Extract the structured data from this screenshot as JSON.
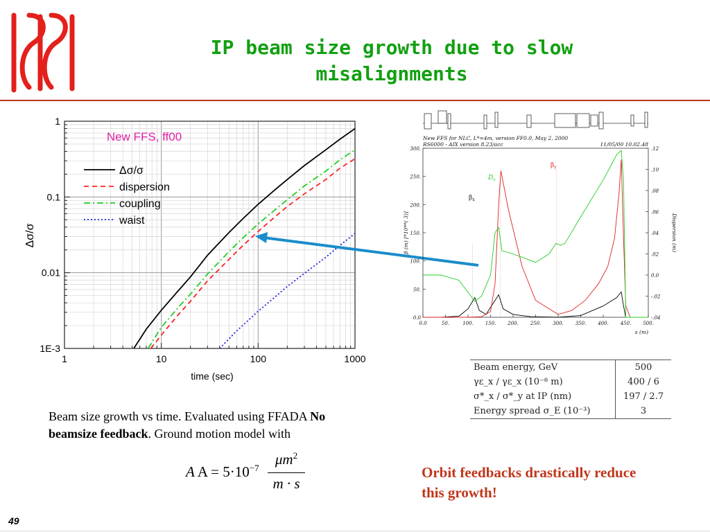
{
  "slide": {
    "title": "IP beam size growth due to slow misalignments",
    "caption_part1": "Beam size growth vs time. Evaluated using FFADA ",
    "caption_bold": "No beamsize feedback",
    "caption_part2": ".  Ground motion model with",
    "formula_lhs": "A = 5·10",
    "formula_exp": "−7",
    "formula_num": "μm",
    "formula_num_exp": "2",
    "formula_den": "m · s",
    "note": "Orbit feedbacks drastically reduce this growth!",
    "page_number": "49",
    "colors": {
      "title": "#12a012",
      "rule": "#b8361a",
      "note": "#c0361b",
      "logo": "#e3201b",
      "arrow": "#1a8ccb"
    }
  },
  "parameters_table": {
    "rows": [
      {
        "label": "Beam energy, GeV",
        "value": "500"
      },
      {
        "label": "γε_x / γε_x (10⁻⁸ m)",
        "value": "400 / 6"
      },
      {
        "label": "σ*_x / σ*_y at IP (nm)",
        "value": "197 / 2.7"
      },
      {
        "label": "Energy spread σ_E (10⁻³)",
        "value": "3"
      }
    ]
  },
  "chart_data": [
    {
      "type": "line",
      "title": "New FFS, ff00",
      "xlabel": "time (sec)",
      "ylabel": "Δσ/σ",
      "xscale": "log",
      "yscale": "log",
      "xlim": [
        1,
        1000
      ],
      "ylim": [
        0.001,
        1
      ],
      "xticks": [
        "1",
        "10",
        "100",
        "1000"
      ],
      "yticks": [
        "1E-3",
        "0.01",
        "0.1",
        "1"
      ],
      "grid": true,
      "legend_position": "upper-left",
      "series": [
        {
          "name": "Δσ/σ",
          "color": "#000000",
          "dash": "solid",
          "x": [
            5.2,
            7,
            10,
            15,
            20,
            30,
            50,
            70,
            100,
            150,
            200,
            300,
            500,
            700,
            1000
          ],
          "y": [
            0.001,
            0.0018,
            0.0032,
            0.0058,
            0.0088,
            0.017,
            0.034,
            0.052,
            0.08,
            0.125,
            0.17,
            0.26,
            0.42,
            0.58,
            0.8
          ]
        },
        {
          "name": "dispersion",
          "color": "#ff2020",
          "dash": "dashed",
          "x": [
            7.8,
            10,
            15,
            20,
            30,
            50,
            70,
            100,
            150,
            200,
            300,
            500,
            700,
            1000
          ],
          "y": [
            0.001,
            0.0015,
            0.0028,
            0.0042,
            0.0078,
            0.015,
            0.023,
            0.035,
            0.055,
            0.075,
            0.11,
            0.17,
            0.24,
            0.32
          ]
        },
        {
          "name": "coupling",
          "color": "#22cc22",
          "dash": "dashdot",
          "x": [
            7.3,
            10,
            15,
            20,
            30,
            50,
            70,
            100,
            150,
            200,
            300,
            500,
            700,
            1000
          ],
          "y": [
            0.001,
            0.0019,
            0.0035,
            0.0052,
            0.0096,
            0.019,
            0.029,
            0.044,
            0.068,
            0.092,
            0.14,
            0.22,
            0.31,
            0.42
          ]
        },
        {
          "name": "waist",
          "color": "#2020dd",
          "dash": "dotted",
          "x": [
            40,
            60,
            100,
            150,
            200,
            300,
            500,
            700,
            1000
          ],
          "y": [
            0.001,
            0.0017,
            0.0031,
            0.0048,
            0.0066,
            0.0098,
            0.016,
            0.023,
            0.033
          ]
        }
      ],
      "annotation_arrow": {
        "points_to": {
          "x": 90,
          "y": 0.03
        }
      }
    },
    {
      "type": "line",
      "header_line1": "New FFS for NLC, L*=4m, version FF0.0, May 2, 2000",
      "header_line2": "RS6000 - AIX version 8.23/acc",
      "header_date": "11/05/00  10.02.48",
      "xlabel": "s (m)",
      "ylabel_left": "β (m)   [*10**(  3)]",
      "ylabel_right": "Dispersion (m)",
      "xlim": [
        0,
        500
      ],
      "ylim_left": [
        0,
        300
      ],
      "ylim_right": [
        -0.04,
        0.12
      ],
      "xticks": [
        "0.0",
        "50.",
        "100.",
        "150.",
        "200.",
        "250.",
        "300.",
        "350.",
        "400.",
        "450.",
        "500."
      ],
      "yticks_left": [
        "0.0",
        "50.",
        "100.",
        "150.",
        "200.",
        "250.",
        "300."
      ],
      "yticks_right": [
        "-.04",
        "-.02",
        "0.0",
        ".02",
        ".04",
        ".06",
        ".08",
        ".10",
        ".12"
      ],
      "curve_labels": {
        "beta_x": "β",
        "beta_x_sub": "x",
        "beta_y": "β",
        "beta_y_sub": "y",
        "disp": "D",
        "disp_sub": "x"
      },
      "series": [
        {
          "name": "β_x",
          "color": "#000000",
          "x": [
            0,
            40,
            80,
            100,
            115,
            125,
            140,
            160,
            168,
            178,
            200,
            240,
            300,
            350,
            400,
            430,
            440,
            445,
            450,
            460,
            500
          ],
          "y": [
            0,
            0,
            2,
            15,
            35,
            12,
            5,
            30,
            40,
            15,
            5,
            1,
            0,
            3,
            20,
            35,
            45,
            20,
            0,
            0,
            0
          ]
        },
        {
          "name": "β_y",
          "color": "#e02020",
          "x": [
            0,
            60,
            100,
            130,
            150,
            160,
            168,
            173,
            190,
            220,
            250,
            300,
            330,
            360,
            390,
            410,
            425,
            435,
            440,
            445,
            450,
            460,
            500
          ],
          "y": [
            0,
            0,
            0,
            1,
            10,
            60,
            200,
            260,
            190,
            90,
            30,
            5,
            12,
            30,
            60,
            90,
            140,
            220,
            280,
            140,
            20,
            0,
            0
          ]
        },
        {
          "name": "D_x",
          "color": "#20cc20",
          "x": [
            0,
            40,
            80,
            115,
            130,
            150,
            160,
            168,
            175,
            200,
            250,
            280,
            295,
            305,
            315,
            350,
            400,
            430,
            440,
            445,
            450,
            460,
            500
          ],
          "y": [
            0,
            0,
            -0.005,
            -0.025,
            -0.02,
            0.0,
            0.04,
            0.045,
            0.023,
            0.02,
            0.012,
            0.02,
            0.03,
            0.028,
            0.03,
            0.055,
            0.09,
            0.114,
            0.118,
            0.09,
            -0.04,
            -0.04,
            -0.04
          ]
        }
      ]
    }
  ]
}
